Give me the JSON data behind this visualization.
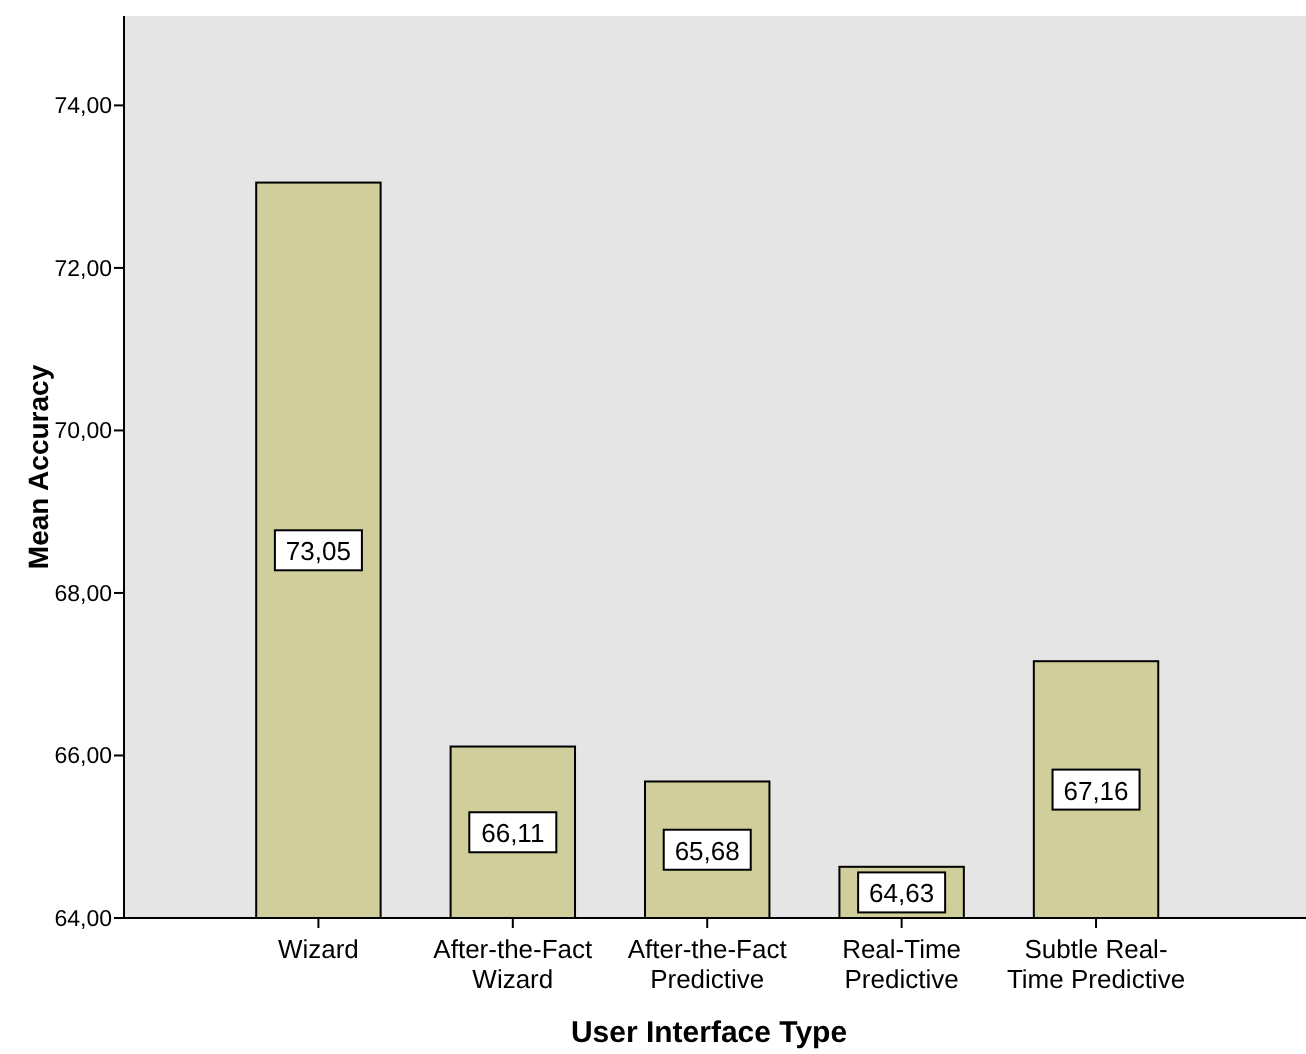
{
  "chart_data": {
    "type": "bar",
    "xlabel": "User Interface Type",
    "ylabel": "Mean Accuracy",
    "categories": [
      "Wizard",
      "After-the-Fact\nWizard",
      "After-the-Fact\nPredictive",
      "Real-Time\nPredictive",
      "Subtle Real-\nTime Predictive"
    ],
    "values": [
      73.05,
      66.11,
      65.68,
      64.63,
      67.16
    ],
    "value_labels": [
      "73,05",
      "66,11",
      "65,68",
      "64,63",
      "67,16"
    ],
    "color": "#d0cf9b",
    "ylim": [
      64,
      75.1
    ],
    "yticks": [
      {
        "value": 64,
        "label": "64,00"
      },
      {
        "value": 66,
        "label": "66,00"
      },
      {
        "value": 68,
        "label": "68,00"
      },
      {
        "value": 70,
        "label": "70,00"
      },
      {
        "value": 72,
        "label": "72,00"
      },
      {
        "value": 74,
        "label": "74,00"
      }
    ],
    "grid": false
  }
}
